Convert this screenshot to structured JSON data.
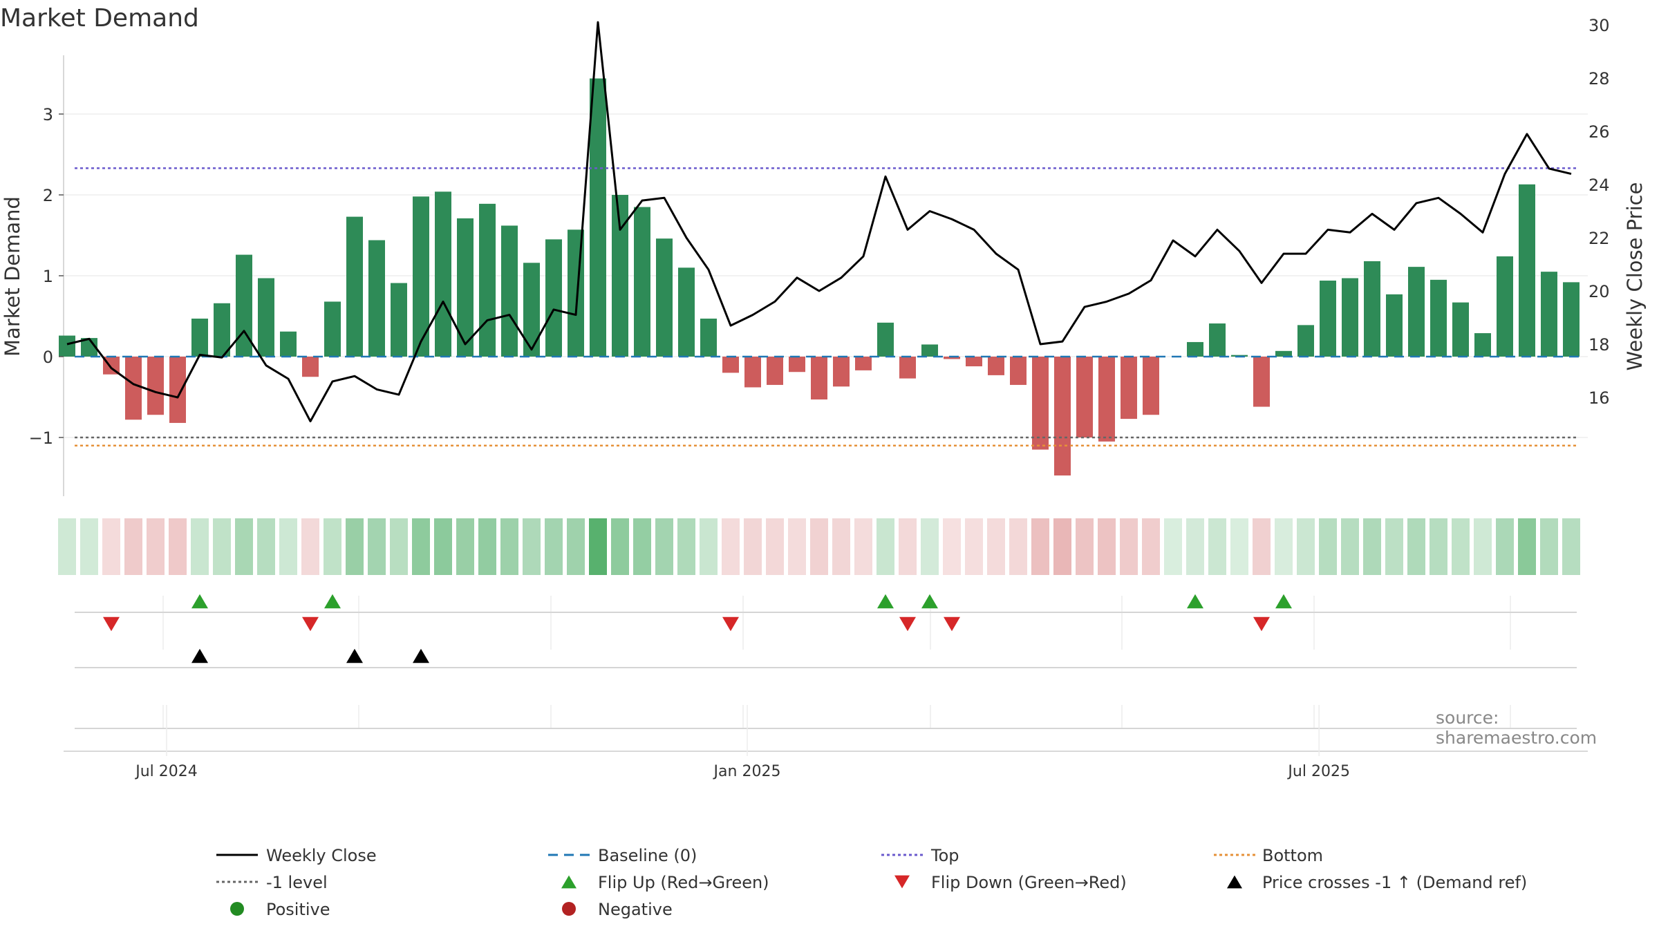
{
  "chart_data": {
    "type": "bar",
    "title": "Market Demand",
    "source": "source: sharemaestro.com",
    "ylabel": "Market Demand",
    "y2label": "Weekly Close Price",
    "ylim": [
      -1.7,
      3.7
    ],
    "y2lim": [
      14.5,
      31
    ],
    "yticks": [
      3,
      2,
      1,
      0,
      -1
    ],
    "yticklabels": [
      "3",
      "2",
      "1",
      "0",
      "−1"
    ],
    "y2ticks": [
      30,
      28,
      26,
      24,
      22,
      20,
      18,
      16
    ],
    "y2ticklabels": [
      "30",
      "28",
      "26",
      "24",
      "22",
      "20",
      "18",
      "16"
    ],
    "xlabels": [
      {
        "label": "Jul 2024",
        "week": 4.5
      },
      {
        "label": "Jan 2025",
        "week": 30.75
      },
      {
        "label": "Jul 2025",
        "week": 56.6
      }
    ],
    "levels": {
      "baseline": 0,
      "top": 2.33,
      "bottom": -1.1,
      "minus_one": -1
    },
    "demand": [
      0.26,
      0.23,
      -0.22,
      -0.78,
      -0.72,
      -0.82,
      0.47,
      0.66,
      1.26,
      0.97,
      0.31,
      -0.25,
      0.68,
      1.73,
      1.44,
      0.91,
      1.98,
      2.04,
      1.71,
      1.89,
      1.62,
      1.16,
      1.45,
      1.57,
      3.44,
      2.0,
      1.85,
      1.46,
      1.1,
      0.47,
      -0.2,
      -0.38,
      -0.35,
      -0.19,
      -0.53,
      -0.37,
      -0.17,
      0.42,
      -0.27,
      0.15,
      -0.03,
      -0.12,
      -0.23,
      -0.35,
      -1.15,
      -1.47,
      -1.0,
      -1.05,
      -0.77,
      -0.72,
      0.0,
      0.18,
      0.41,
      0.02,
      -0.62,
      0.07,
      0.39,
      0.94,
      0.97,
      1.18,
      0.77,
      1.11,
      0.95,
      0.67,
      0.29,
      1.24,
      2.13,
      1.05,
      0.92
    ],
    "close": [
      18.0,
      18.2,
      17.1,
      16.5,
      16.2,
      16.0,
      17.6,
      17.5,
      18.5,
      17.2,
      16.7,
      15.1,
      16.6,
      16.8,
      16.3,
      16.1,
      18.1,
      19.6,
      18.0,
      18.9,
      19.1,
      17.8,
      19.3,
      19.1,
      30.1,
      22.3,
      23.4,
      23.5,
      22.0,
      20.8,
      18.7,
      19.1,
      19.6,
      20.5,
      20.0,
      20.5,
      21.3,
      24.3,
      22.3,
      23.0,
      22.7,
      22.3,
      21.4,
      20.8,
      18.0,
      18.1,
      19.4,
      19.6,
      19.9,
      20.4,
      21.9,
      21.3,
      22.3,
      21.5,
      20.3,
      21.4,
      21.4,
      22.3,
      22.2,
      22.9,
      22.3,
      23.3,
      23.5,
      22.9,
      22.2,
      24.4,
      25.9,
      24.6,
      24.4
    ],
    "flip_up_weeks": [
      6,
      12,
      37,
      39,
      51,
      55
    ],
    "flip_down_weeks": [
      2,
      11,
      30,
      38,
      40,
      54
    ],
    "price_cross_weeks": [
      6,
      13,
      16
    ],
    "legend": [
      {
        "label": "Weekly Close",
        "marker": "line-solid",
        "color": "#000000"
      },
      {
        "label": "Baseline (0)",
        "marker": "line-dash",
        "color": "#1f77b4"
      },
      {
        "label": "Top",
        "marker": "line-dot",
        "color": "#6a5acd"
      },
      {
        "label": "Bottom",
        "marker": "line-dot",
        "color": "#e69138"
      },
      {
        "label": "-1 level",
        "marker": "line-dot",
        "color": "#666666"
      },
      {
        "label": "Flip Up (Red→Green)",
        "marker": "triangle-up",
        "color": "#2ca02c"
      },
      {
        "label": "Flip Down (Green→Red)",
        "marker": "triangle-down",
        "color": "#d62728"
      },
      {
        "label": "Price crosses -1 ↑ (Demand ref)",
        "marker": "triangle-up",
        "color": "#000000"
      },
      {
        "label": "Positive",
        "marker": "circle",
        "color": "#228b22"
      },
      {
        "label": "Negative",
        "marker": "circle",
        "color": "#b22222"
      }
    ],
    "colors": {
      "positive_bar": "#2e8b57",
      "negative_bar": "#cd5c5c",
      "close_line": "#000000",
      "baseline": "#1f77b4",
      "top": "#6a5acd",
      "bottom": "#e69138",
      "minus_one": "#666666",
      "flip_up": "#2ca02c",
      "flip_down": "#d62728",
      "price_cross": "#000000",
      "grid": "#e6e6e6",
      "strip_green": "#2e9e4a",
      "strip_red": "#cd5c5c"
    }
  }
}
